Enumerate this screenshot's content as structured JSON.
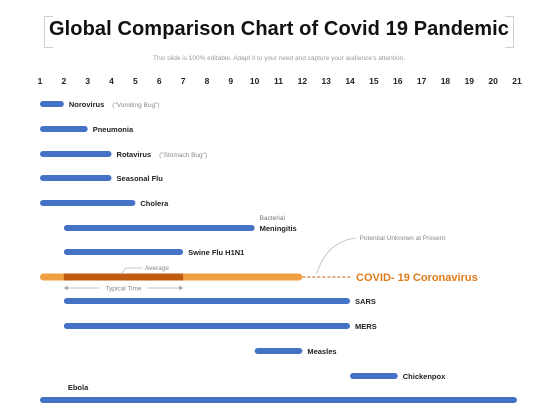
{
  "header": {
    "title": "Global Comparison Chart of  Covid 19 Pandemic",
    "subtitle": "This slide is 100% editable. Adapt it to your need and capture your audience's attention."
  },
  "chart_data": {
    "type": "bar",
    "orientation": "horizontal-range",
    "x_ticks": [
      1,
      2,
      3,
      4,
      5,
      6,
      7,
      8,
      9,
      10,
      11,
      12,
      13,
      14,
      15,
      16,
      17,
      18,
      19,
      20,
      21
    ],
    "xlim": [
      1,
      21
    ],
    "grid": false,
    "colors": {
      "bar": "#4472c4",
      "covid": "#f0a040",
      "covid_overlay": "#c05a10",
      "covid_label": "#e07b1a",
      "annotation": "#999999"
    },
    "series": [
      {
        "name": "Norovirus",
        "note": "(\"Vomiting Bug\")",
        "start": 1,
        "end": 2
      },
      {
        "name": "Pneumonia",
        "start": 1,
        "end": 3
      },
      {
        "name": "Rotavirus",
        "note": "(\"Stomach Bug\")",
        "start": 1,
        "end": 4
      },
      {
        "name": "Seasonal Flu",
        "start": 1,
        "end": 4
      },
      {
        "name": "Cholera",
        "start": 1,
        "end": 5
      },
      {
        "name": "Meningitis",
        "note": "Bacterial",
        "start": 2,
        "end": 10
      },
      {
        "name": "Swine Flu H1N1",
        "start": 2,
        "end": 7
      },
      {
        "name": "COVID- 19 Coronavirus",
        "start": 1,
        "end": 12,
        "overlay_start": 2,
        "overlay_end": 7,
        "projected_end": 14
      },
      {
        "name": "SARS",
        "start": 2,
        "end": 14
      },
      {
        "name": "MERS",
        "start": 2,
        "end": 14
      },
      {
        "name": "Measles",
        "start": 10,
        "end": 12
      },
      {
        "name": "Chickenpox",
        "start": 14,
        "end": 16
      },
      {
        "name": "Ebola",
        "start": 1,
        "end": 21
      }
    ],
    "annotations": {
      "potential": "Potential Unknown at Present",
      "average": "Average",
      "typical_time": "Typical Time",
      "typical_range": [
        2,
        7
      ]
    }
  }
}
